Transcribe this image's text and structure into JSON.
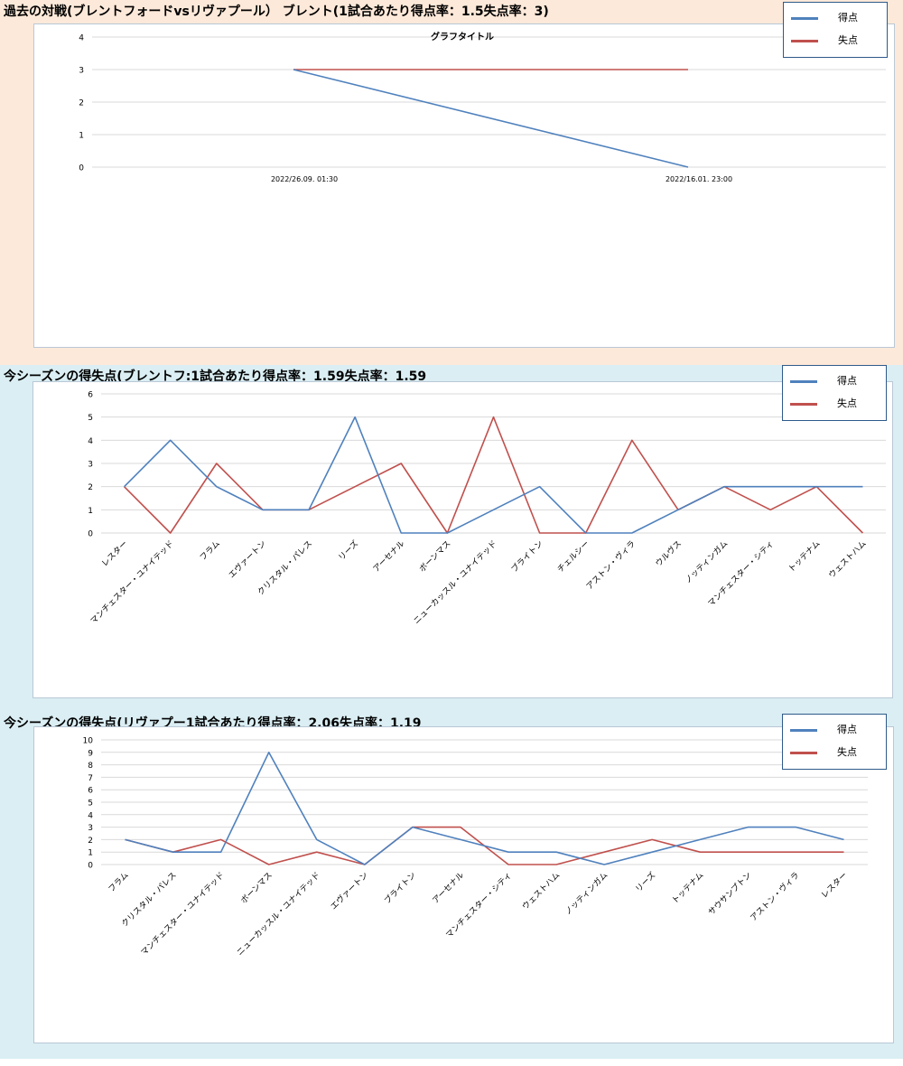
{
  "colors": {
    "score": "#4f81bd",
    "concede": "#c0504d",
    "section1_bg": "#fde9d9",
    "section_bg": "#daeef3",
    "grid": "#d9d9d9"
  },
  "chart_data": [
    {
      "type": "line",
      "section_title": "過去の対戦(ブレントフォードvsリヴァプール） ブレント(1試合あたり得点率：1.5失点率：3)",
      "title": "グラフタイトル",
      "categories": [
        "2022/26.09. 01:30",
        "2022/16.01. 23:00"
      ],
      "series": [
        {
          "name": "得点",
          "values": [
            3,
            0
          ]
        },
        {
          "name": "失点",
          "values": [
            3,
            3
          ]
        }
      ],
      "ylim": [
        0,
        4
      ],
      "yticks": [
        0,
        1,
        2,
        3,
        4
      ],
      "grid": true,
      "legend": "top-right"
    },
    {
      "type": "line",
      "section_title": "今シーズンの得失点(ブレントフ:1試合あたり得点率：1.59失点率：1.59",
      "title": "",
      "categories": [
        "レスター",
        "マンチェスター・ユナイテッド",
        "フラム",
        "エヴァートン",
        "クリスタル・パレス",
        "リーズ",
        "アーセナル",
        "ボーンマス",
        "ニューカッスル・ユナイテッド",
        "ブライトン",
        "チェルシー",
        "アストン・ヴィラ",
        "ウルヴス",
        "ノッティンガム",
        "マンチェスター・シティ",
        "トッテナム",
        "ウェストハム"
      ],
      "series": [
        {
          "name": "得点",
          "values": [
            2,
            4,
            2,
            1,
            1,
            5,
            0,
            0,
            1,
            2,
            0,
            0,
            1,
            2,
            2,
            2,
            2
          ]
        },
        {
          "name": "失点",
          "values": [
            2,
            0,
            3,
            1,
            1,
            2,
            3,
            0,
            5,
            0,
            0,
            4,
            1,
            2,
            1,
            2,
            0
          ]
        }
      ],
      "ylim": [
        0,
        6
      ],
      "yticks": [
        0,
        1,
        2,
        3,
        4,
        5,
        6
      ],
      "grid": true,
      "legend": "top-right"
    },
    {
      "type": "line",
      "section_title": "今シーズンの得失点(リヴァプー1試合あたり得点率：2.06失点率：1.19",
      "title": "",
      "categories": [
        "フラム",
        "クリスタル・パレス",
        "マンチェスター・ユナイテッド",
        "ボーンマス",
        "ニューカッスル・ユナイテッド",
        "エヴァートン",
        "ブライトン",
        "アーセナル",
        "マンチェスター・シティ",
        "ウェストハム",
        "ノッティンガム",
        "リーズ",
        "トッテナム",
        "サウサンプトン",
        "アストン・ヴィラ",
        "レスター"
      ],
      "series": [
        {
          "name": "得点",
          "values": [
            2,
            1,
            1,
            9,
            2,
            0,
            3,
            2,
            1,
            1,
            0,
            1,
            2,
            3,
            3,
            2
          ]
        },
        {
          "name": "失点",
          "values": [
            2,
            1,
            2,
            0,
            1,
            0,
            3,
            3,
            0,
            0,
            1,
            2,
            1,
            1,
            1,
            1
          ]
        }
      ],
      "ylim": [
        0,
        10
      ],
      "yticks": [
        0,
        1,
        2,
        3,
        4,
        5,
        6,
        7,
        8,
        9,
        10
      ],
      "grid": true,
      "legend": "top-right"
    }
  ]
}
